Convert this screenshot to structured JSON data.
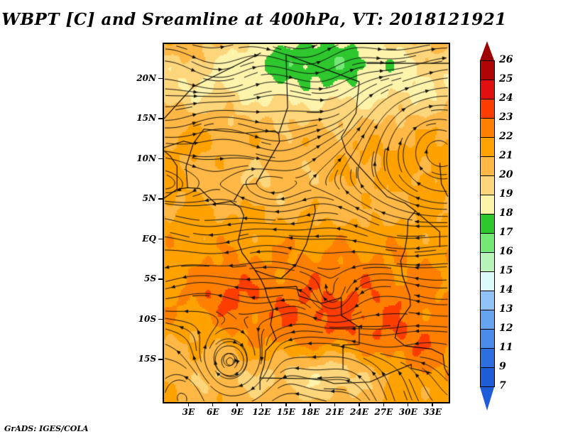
{
  "title": "WBPT [C] and Sreamline at 400hPa, VT: 2018121921",
  "credit": "GrADS: IGES/COLA",
  "chart_data": {
    "type": "heatmap",
    "title": "WBPT [C] and Sreamline at 400hPa, VT: 2018121921",
    "variable": "WBPT",
    "units": "C",
    "overlay": "Streamline (wind streamlines with arrowheads)",
    "pressure_level": "400hPa",
    "valid_time": "2018121921",
    "x_axis": {
      "tick_labels": [
        "3E",
        "6E",
        "9E",
        "12E",
        "15E",
        "18E",
        "21E",
        "24E",
        "27E",
        "30E",
        "33E"
      ],
      "tick_values_deg_east": [
        3,
        6,
        9,
        12,
        15,
        18,
        21,
        24,
        27,
        30,
        33
      ],
      "range_deg_east": [
        0,
        35
      ]
    },
    "y_axis": {
      "tick_labels": [
        "20N",
        "15N",
        "10N",
        "5N",
        "EQ",
        "5S",
        "10S",
        "15S"
      ],
      "tick_values_deg_north": [
        20,
        15,
        10,
        5,
        0,
        -5,
        -10,
        -15
      ],
      "range_deg_north": [
        -20.3,
        24.3
      ]
    },
    "colorbar": {
      "boundary_labels": [
        "26",
        "25",
        "24",
        "23",
        "22",
        "21",
        "20",
        "19",
        "18",
        "17",
        "16",
        "15",
        "14",
        "13",
        "12",
        "11",
        "9",
        "7"
      ],
      "boundary_values": [
        26,
        25,
        24,
        23,
        22,
        21,
        20,
        19,
        18,
        17,
        16,
        15,
        14,
        13,
        12,
        11,
        9,
        7
      ],
      "segment_colors_top_to_bottom": [
        "#b00505",
        "#e01010",
        "#fd3d00",
        "#ff8000",
        "#ffa200",
        "#ffb845",
        "#fdd57a",
        "#fdf3ab",
        "#2ec72e",
        "#74e874",
        "#b8f3b8",
        "#ddfafa",
        "#8fc2f5",
        "#66a4ef",
        "#4a8ae8",
        "#2e6fe0",
        "#1f5cd8"
      ],
      "arrow_above_color": "#9e0000",
      "arrow_below_color": "#1f5cd8"
    },
    "field_summary": [
      {
        "region": "north of ~21N between 8E and 30E",
        "wbpt_c": "17-18 (green)"
      },
      {
        "region": "17N-21N zonal band",
        "wbpt_c": "18-19 (pale yellow)"
      },
      {
        "region": "12N-17N",
        "wbpt_c": "19-21 (gold / amber)"
      },
      {
        "region": "3N-12N central band",
        "wbpt_c": "20-22 (amber / orange)"
      },
      {
        "region": "equator to 10S",
        "wbpt_c": "21-23 (orange to deep orange)"
      },
      {
        "region": "spots near 7E 7S and in the southeast",
        "wbpt_c": "23-24 (orange-red)"
      },
      {
        "region": "southeast quadrant 15E-35E, 5S-15S",
        "wbpt_c": "22-24"
      },
      {
        "region": "south of ~15S",
        "wbpt_c": "19-21 (gold / amber)"
      }
    ],
    "streamline_features": [
      "westerly flow (arrows eastward) north of about 8N",
      "easterly flow (arrows westward) between about 4N and 12S",
      "clockwise spiral vortex near 8E 15.5S",
      "large curved anticyclonic fan over 25E-35E, 5N-15N",
      "northward flow in the bottom-right corner south of 16S",
      "weak swirls near 2E 19S and 20E 8S"
    ]
  }
}
